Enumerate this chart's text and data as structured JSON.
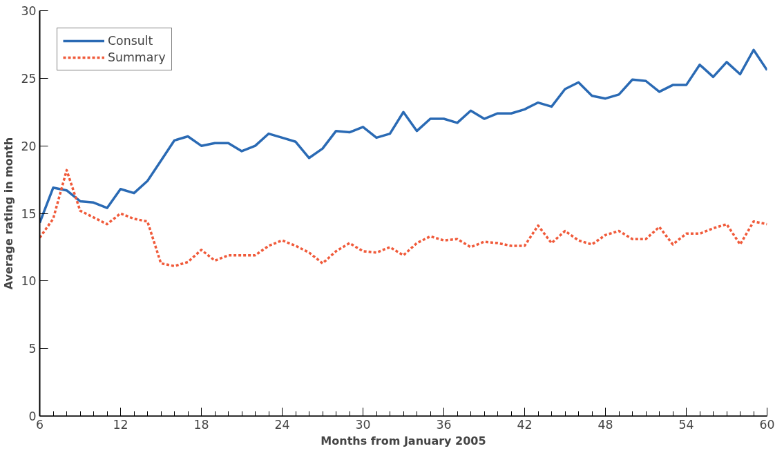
{
  "chart_data": {
    "type": "line",
    "xlabel": "Months from January 2005",
    "ylabel": "Average rating in month",
    "x": [
      6,
      7,
      8,
      9,
      10,
      11,
      12,
      13,
      14,
      15,
      16,
      17,
      18,
      19,
      20,
      21,
      22,
      23,
      24,
      25,
      26,
      27,
      28,
      29,
      30,
      31,
      32,
      33,
      34,
      35,
      36,
      37,
      38,
      39,
      40,
      41,
      42,
      43,
      44,
      45,
      46,
      47,
      48,
      49,
      50,
      51,
      52,
      53,
      54,
      55,
      56,
      57,
      58,
      59,
      60
    ],
    "series": [
      {
        "name": "Consult",
        "color": "#2a6ab4",
        "line_style": "solid",
        "values": [
          14.3,
          16.9,
          16.7,
          15.9,
          15.8,
          15.4,
          16.8,
          16.5,
          17.4,
          18.9,
          20.4,
          20.7,
          20.0,
          20.2,
          20.2,
          19.6,
          20.0,
          20.9,
          20.6,
          20.3,
          19.1,
          19.8,
          21.1,
          21.0,
          21.4,
          20.6,
          20.9,
          22.5,
          21.1,
          22.0,
          22.0,
          21.7,
          22.6,
          22.0,
          22.4,
          22.4,
          22.7,
          23.2,
          22.9,
          24.2,
          24.7,
          23.7,
          23.5,
          23.8,
          24.9,
          24.8,
          24.0,
          24.5,
          24.5,
          26.0,
          25.1,
          26.2,
          25.3,
          27.1,
          25.6
        ]
      },
      {
        "name": "Summary",
        "color": "#f05a3a",
        "line_style": "dashed",
        "values": [
          13.2,
          14.6,
          18.2,
          15.2,
          14.7,
          14.2,
          15.0,
          14.6,
          14.4,
          11.3,
          11.1,
          11.4,
          12.3,
          11.5,
          11.9,
          11.9,
          11.9,
          12.6,
          13.0,
          12.6,
          12.1,
          11.3,
          12.2,
          12.8,
          12.2,
          12.1,
          12.5,
          11.9,
          12.8,
          13.3,
          13.0,
          13.1,
          12.5,
          12.9,
          12.8,
          12.6,
          12.6,
          14.1,
          12.8,
          13.7,
          13.0,
          12.7,
          13.4,
          13.7,
          13.1,
          13.1,
          14.0,
          12.7,
          13.5,
          13.5,
          13.9,
          14.2,
          12.7,
          14.4,
          14.2
        ]
      }
    ],
    "xlim": [
      6,
      60
    ],
    "ylim": [
      0,
      30
    ],
    "xticks": [
      6,
      {
        "value": 7,
        "label": null
      },
      {
        "value": 8,
        "label": null
      },
      {
        "value": 9,
        "label": null
      },
      {
        "value": 10,
        "label": null
      },
      {
        "value": 11,
        "label": null
      },
      12,
      {
        "value": 13,
        "label": null
      },
      {
        "value": 14,
        "label": null
      },
      {
        "value": 15,
        "label": null
      },
      {
        "value": 16,
        "label": null
      },
      {
        "value": 17,
        "label": null
      },
      18,
      {
        "value": 19,
        "label": null
      },
      {
        "value": 20,
        "label": null
      },
      {
        "value": 21,
        "label": null
      },
      {
        "value": 22,
        "label": null
      },
      {
        "value": 23,
        "label": null
      },
      24,
      {
        "value": 25,
        "label": null
      },
      {
        "value": 26,
        "label": null
      },
      {
        "value": 27,
        "label": null
      },
      {
        "value": 28,
        "label": null
      },
      {
        "value": 29,
        "label": null
      },
      30,
      {
        "value": 31,
        "label": null
      },
      {
        "value": 32,
        "label": null
      },
      {
        "value": 33,
        "label": null
      },
      {
        "value": 34,
        "label": null
      },
      {
        "value": 35,
        "label": null
      },
      36,
      {
        "value": 37,
        "label": null
      },
      {
        "value": 38,
        "label": null
      },
      {
        "value": 39,
        "label": null
      },
      {
        "value": 40,
        "label": null
      },
      {
        "value": 41,
        "label": null
      },
      42,
      {
        "value": 43,
        "label": null
      },
      {
        "value": 44,
        "label": null
      },
      {
        "value": 45,
        "label": null
      },
      {
        "value": 46,
        "label": null
      },
      {
        "value": 47,
        "label": null
      },
      48,
      {
        "value": 49,
        "label": null
      },
      {
        "value": 50,
        "label": null
      },
      {
        "value": 51,
        "label": null
      },
      {
        "value": 52,
        "label": null
      },
      {
        "value": 53,
        "label": null
      },
      54,
      {
        "value": 55,
        "label": null
      },
      {
        "value": 56,
        "label": null
      },
      {
        "value": 57,
        "label": null
      },
      {
        "value": 58,
        "label": null
      },
      {
        "value": 59,
        "label": null
      },
      60
    ],
    "yticks": [
      0,
      5,
      10,
      15,
      20,
      25,
      30
    ],
    "grid": false,
    "legend": "top left",
    "marker": "none"
  }
}
